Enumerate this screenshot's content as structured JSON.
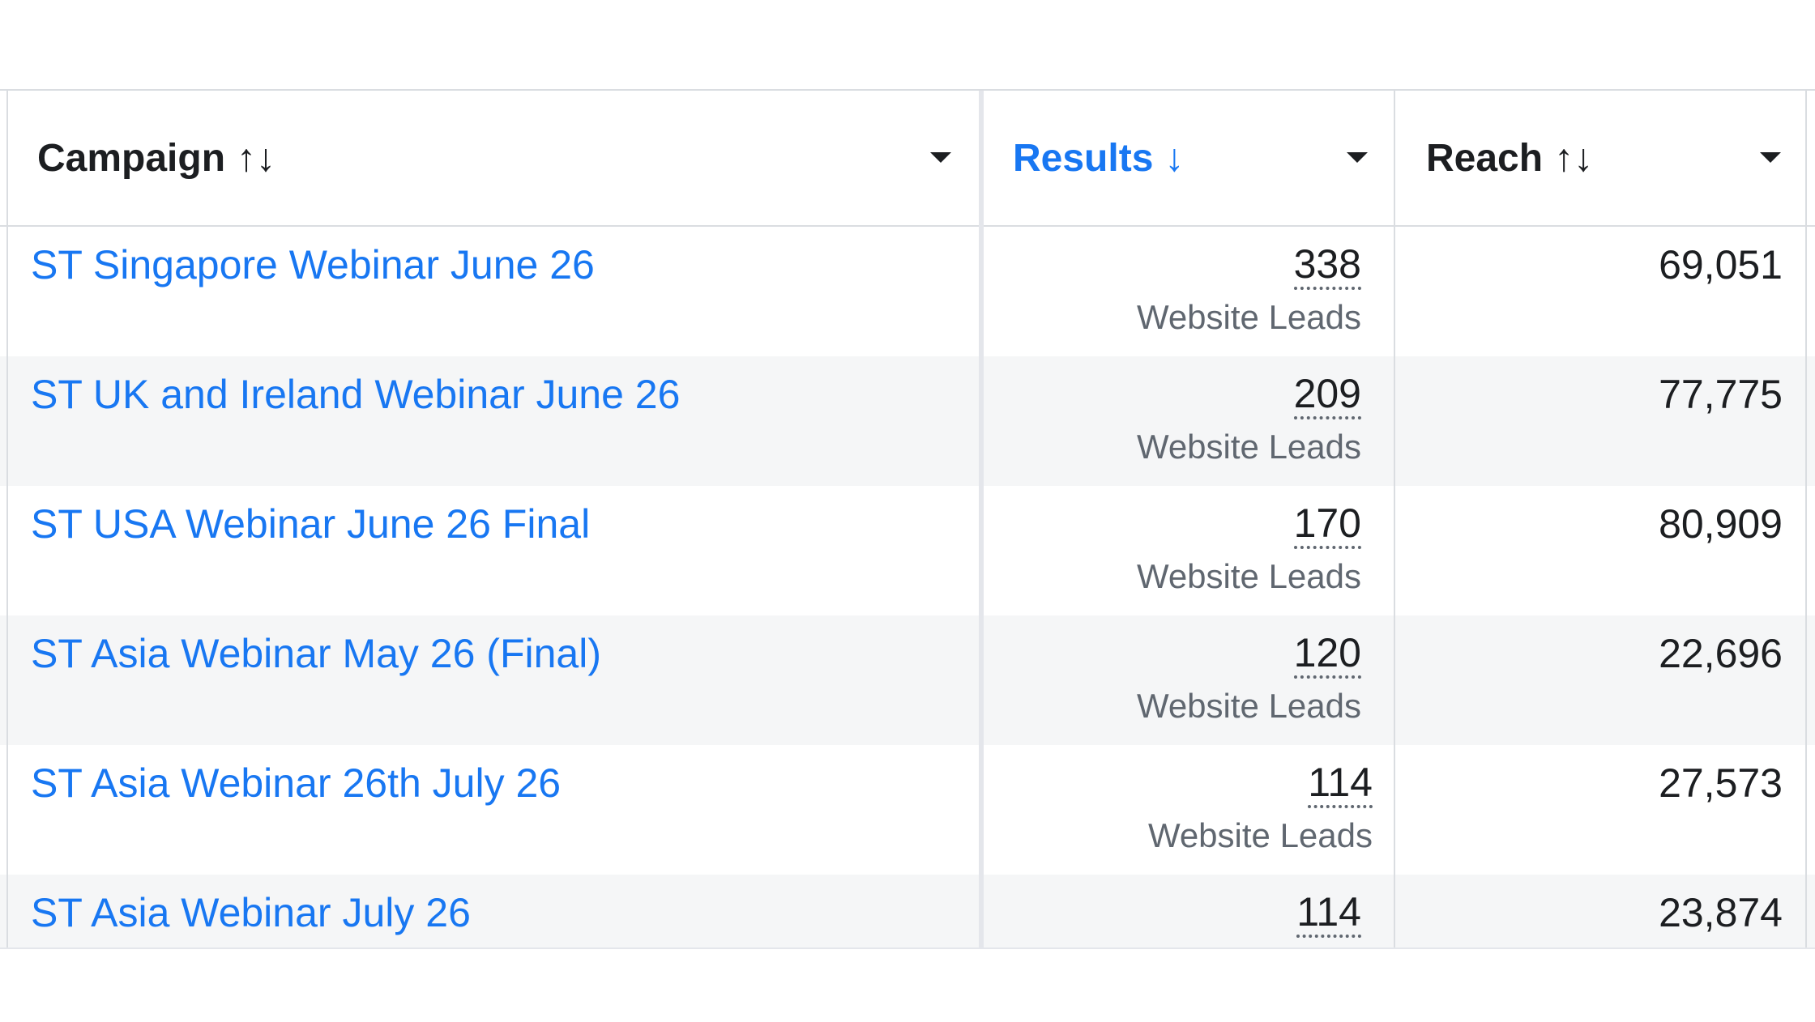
{
  "columns": {
    "campaign": {
      "label": "Campaign",
      "sort_icon": "↑↓"
    },
    "results": {
      "label": "Results",
      "sort_icon": "↓"
    },
    "reach": {
      "label": "Reach",
      "sort_icon": "↑↓"
    }
  },
  "rows": [
    {
      "campaign": "ST Singapore Webinar June 26",
      "results": "338",
      "results_type": "Website Leads",
      "reach": "69,051"
    },
    {
      "campaign": "ST UK and Ireland Webinar June 26",
      "results": "209",
      "results_type": "Website Leads",
      "reach": "77,775"
    },
    {
      "campaign": "ST USA Webinar June 26 Final",
      "results": "170",
      "results_type": "Website Leads",
      "reach": "80,909"
    },
    {
      "campaign": "ST Asia Webinar May 26 (Final)",
      "results": "120",
      "results_type": "Website Leads",
      "reach": "22,696"
    },
    {
      "campaign": "ST Asia Webinar 26th July 26",
      "results": "114",
      "results_type": "Website Leads",
      "reach": "27,573"
    },
    {
      "campaign": "ST Asia Webinar July 26",
      "results": "114",
      "results_type": "",
      "reach": "23,874"
    }
  ],
  "colors": {
    "link": "#1877f2",
    "text": "#1c1e21",
    "muted": "#606770",
    "row_alt": "#f5f6f7",
    "border": "#dadde1"
  }
}
